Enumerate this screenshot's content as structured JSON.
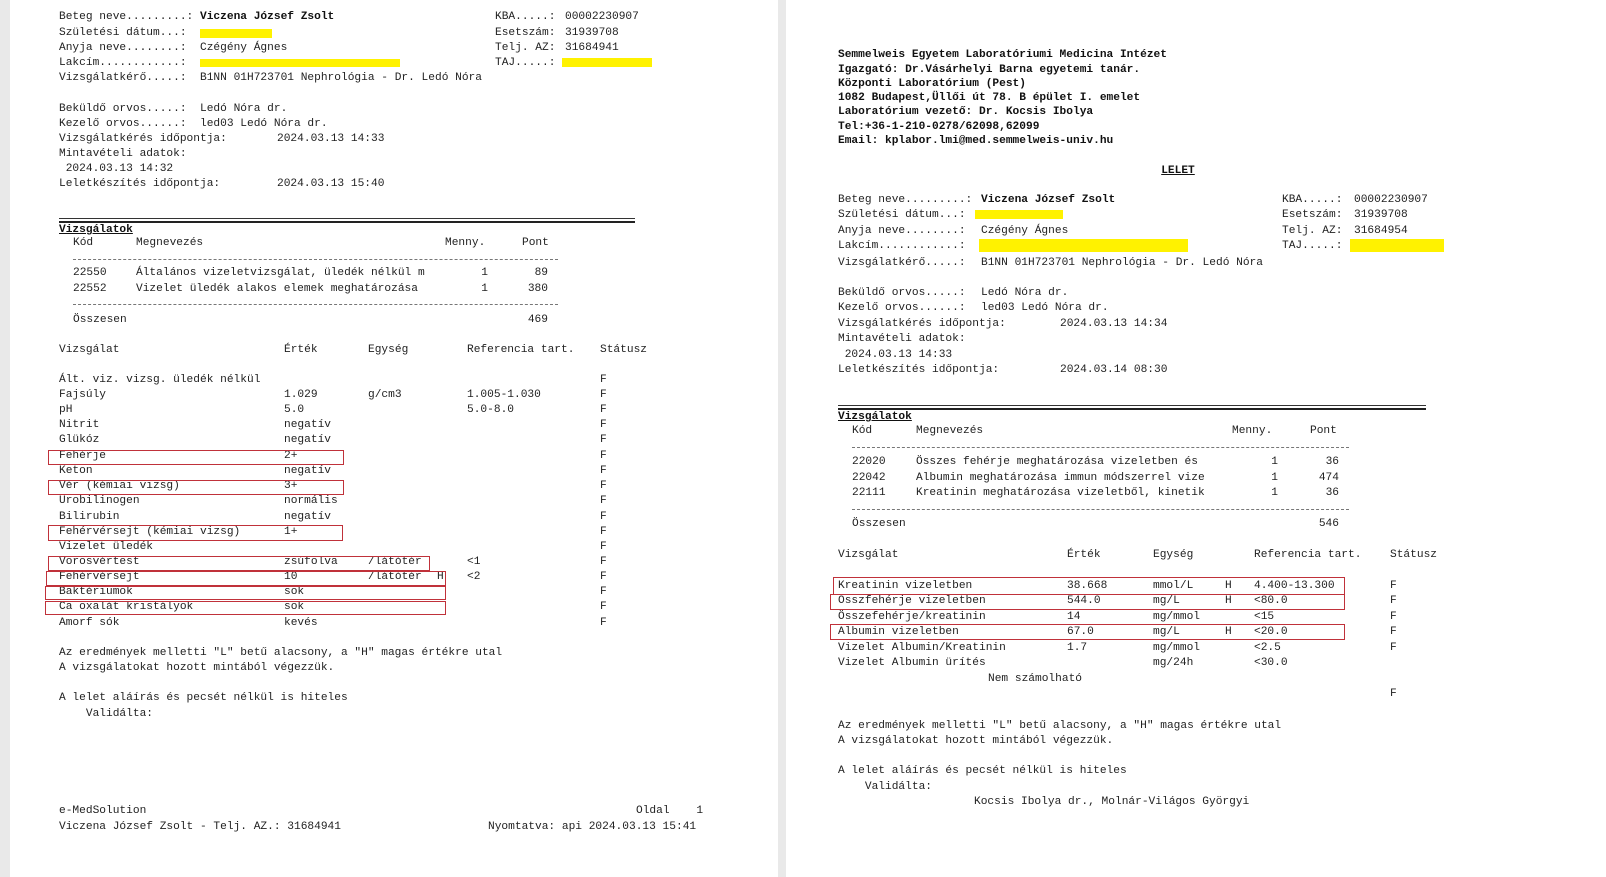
{
  "left_report": {
    "patient": [
      {
        "label": "Beteg neve.........:",
        "value": "Viczena József Zsolt",
        "bold": true
      },
      {
        "label": "Születési dátum...:",
        "value": "",
        "redacted": true
      },
      {
        "label": "Anyja neve........:",
        "value": "Czégény Ágnes"
      },
      {
        "label": "Lakcím............:",
        "value": "",
        "redacted": true
      },
      {
        "label": "Vizsgálatkérő.....:",
        "value": "B1NN 01H723701 Nephrológia - Dr. Ledó Nóra"
      }
    ],
    "ids": [
      {
        "label": "KBA.....:",
        "value": "00002230907"
      },
      {
        "label": "Esetszám:",
        "value": "31939708"
      },
      {
        "label": "Telj. AZ:",
        "value": "31684941"
      },
      {
        "label": "TAJ.....:",
        "value": "",
        "redacted": true
      }
    ],
    "doctors": [
      {
        "label": "Beküldő orvos.....:",
        "value": "Ledó Nóra dr."
      },
      {
        "label": "Kezelő orvos......:",
        "value": "led03 Ledó Nóra dr."
      },
      {
        "label": "Vizsgálatkérés időpontja:",
        "value": "2024.03.13 14:33"
      },
      {
        "label": "Mintavételi adatok:",
        "value": ""
      },
      {
        "label": " 2024.03.13 14:32",
        "value": ""
      },
      {
        "label": "Leletkészítés időpontja:",
        "value": "2024.03.13 15:40"
      }
    ],
    "tests_title": "Vizsgálatok",
    "tests_header": {
      "code": "Kód",
      "name": "Megnevezés",
      "qty": "Menny.",
      "points": "Pont"
    },
    "tests": [
      {
        "code": "22550",
        "name": "Általános vizeletvizsgálat, üledék nélkül m",
        "qty": "1",
        "points": "89"
      },
      {
        "code": "22552",
        "name": "Vizelet üledék alakos elemek meghatározása",
        "qty": "1",
        "points": "380"
      }
    ],
    "total": {
      "label": "Összesen",
      "points": "469"
    },
    "results_header": {
      "test": "Vizsgálat",
      "value": "Érték",
      "unit": "Egység",
      "ref": "Referencia tart.",
      "status": "Státusz"
    },
    "results": [
      {
        "test": "Ált. viz. vizsg. üledék nélkül",
        "value": "",
        "unit": "",
        "flag": "",
        "ref": "",
        "status": "F"
      },
      {
        "test": "Fajsúly",
        "value": "1.029",
        "unit": "g/cm3",
        "flag": "",
        "ref": "1.005-1.030",
        "status": "F"
      },
      {
        "test": "pH",
        "value": "5.0",
        "unit": "",
        "flag": "",
        "ref": "5.0-8.0",
        "status": "F"
      },
      {
        "test": "Nitrit",
        "value": "negatív",
        "unit": "",
        "flag": "",
        "ref": "",
        "status": "F"
      },
      {
        "test": "Glükóz",
        "value": "negatív",
        "unit": "",
        "flag": "",
        "ref": "",
        "status": "F"
      },
      {
        "test": "Fehérje",
        "value": "2+",
        "unit": "",
        "flag": "",
        "ref": "",
        "status": "F",
        "highlight": true
      },
      {
        "test": "Keton",
        "value": "negatív",
        "unit": "",
        "flag": "",
        "ref": "",
        "status": "F"
      },
      {
        "test": "Vér (kémiai vizsg)",
        "value": "3+",
        "unit": "",
        "flag": "",
        "ref": "",
        "status": "F",
        "highlight": true
      },
      {
        "test": "Urobilinogen",
        "value": "normális",
        "unit": "",
        "flag": "",
        "ref": "",
        "status": "F"
      },
      {
        "test": "Bilirubin",
        "value": "negatív",
        "unit": "",
        "flag": "",
        "ref": "",
        "status": "F"
      },
      {
        "test": "Fehérvérsejt (kémiai vizsg)",
        "value": "1+",
        "unit": "",
        "flag": "",
        "ref": "",
        "status": "F",
        "highlight": true
      },
      {
        "test": "Vizelet üledék",
        "value": "",
        "unit": "",
        "flag": "",
        "ref": "",
        "status": "F"
      },
      {
        "test": "Vörösvértest",
        "value": "zsúfolva",
        "unit": "/látótér",
        "flag": "",
        "ref": "<1",
        "status": "F",
        "highlight": true
      },
      {
        "test": "Fehérvérsejt",
        "value": "10",
        "unit": "/látótér",
        "flag": "H",
        "ref": "<2",
        "status": "F",
        "highlight": true
      },
      {
        "test": "Baktériumok",
        "value": "sok",
        "unit": "",
        "flag": "",
        "ref": "",
        "status": "F",
        "highlight": true
      },
      {
        "test": "Ca oxalát kristályok",
        "value": "sok",
        "unit": "",
        "flag": "",
        "ref": "",
        "status": "F",
        "highlight": true
      },
      {
        "test": "Amorf sók",
        "value": "kevés",
        "unit": "",
        "flag": "",
        "ref": "",
        "status": "F"
      }
    ],
    "notes": [
      "Az eredmények melletti \"L\" betű alacsony, a \"H\" magas értékre utal",
      "A vizsgálatokat hozott mintából végezzük.",
      "A lelet aláírás és pecsét nélkül is hiteles",
      "    Validálta:"
    ],
    "footer": {
      "software": "e-MedSolution",
      "page": "Oldal    1",
      "patient_line": "Viczena József Zsolt - Telj. AZ.: 31684941",
      "printed": "Nyomtatva: api 2024.03.13 15:41"
    }
  },
  "right_report": {
    "institution": [
      "Semmelweis Egyetem Laboratóriumi Medicina Intézet",
      "Igazgató: Dr.Vásárhelyi Barna egyetemi tanár.",
      "Központi Laboratórium (Pest)",
      "1082 Budapest,Üllői út 78. B épület I. emelet",
      "Laboratórium vezető: Dr. Kocsis Ibolya",
      "Tel:+36-1-210-0278/62098,62099",
      "Email: kplabor.lmi@med.semmelweis-univ.hu"
    ],
    "title": "LELET",
    "patient": [
      {
        "label": "Beteg neve.........:",
        "value": "Viczena József Zsolt",
        "bold": true
      },
      {
        "label": "Születési dátum...:",
        "value": "",
        "redacted": true
      },
      {
        "label": "Anyja neve........:",
        "value": "Czégény Ágnes"
      },
      {
        "label": "Lakcím............:",
        "value": "",
        "redacted": true
      },
      {
        "label": "Vizsgálatkérő.....:",
        "value": "B1NN 01H723701 Nephrológia - Dr. Ledó Nóra"
      }
    ],
    "ids": [
      {
        "label": "KBA.....:",
        "value": "00002230907"
      },
      {
        "label": "Esetszám:",
        "value": "31939708"
      },
      {
        "label": "Telj. AZ:",
        "value": "31684954"
      },
      {
        "label": "TAJ.....:",
        "value": "",
        "redacted": true
      }
    ],
    "doctors": [
      {
        "label": "Beküldő orvos.....:",
        "value": "Ledó Nóra dr."
      },
      {
        "label": "Kezelő orvos......:",
        "value": "led03 Ledó Nóra dr."
      },
      {
        "label": "Vizsgálatkérés időpontja:",
        "value": "2024.03.13 14:34"
      },
      {
        "label": "Mintavételi adatok:",
        "value": ""
      },
      {
        "label": " 2024.03.13 14:33",
        "value": ""
      },
      {
        "label": "Leletkészítés időpontja:",
        "value": "2024.03.14 08:30"
      }
    ],
    "tests_title": "Vizsgálatok",
    "tests_header": {
      "code": "Kód",
      "name": "Megnevezés",
      "qty": "Menny.",
      "points": "Pont"
    },
    "tests": [
      {
        "code": "22020",
        "name": "Összes fehérje meghatározása vizeletben és",
        "qty": "1",
        "points": "36"
      },
      {
        "code": "22042",
        "name": "Albumin meghatározása immun módszerrel vize",
        "qty": "1",
        "points": "474"
      },
      {
        "code": "22111",
        "name": "Kreatinin meghatározása vizeletből, kinetik",
        "qty": "1",
        "points": "36"
      }
    ],
    "total": {
      "label": "Összesen",
      "points": "546"
    },
    "results_header": {
      "test": "Vizsgálat",
      "value": "Érték",
      "unit": "Egység",
      "ref": "Referencia tart.",
      "status": "Státusz"
    },
    "results": [
      {
        "test": "Kreatinin vizeletben",
        "value": "38.668",
        "unit": "mmol/L",
        "flag": "H",
        "ref": "4.400-13.300",
        "status": "F",
        "highlight": true
      },
      {
        "test": "Összfehérje vizeletben",
        "value": "544.0",
        "unit": "mg/L",
        "flag": "H",
        "ref": "<80.0",
        "status": "F",
        "highlight": true
      },
      {
        "test": "Összefehérje/kreatinin",
        "value": "14",
        "unit": "mg/mmol",
        "flag": "",
        "ref": "<15",
        "status": "F"
      },
      {
        "test": "Albumin vizeletben",
        "value": "67.0",
        "unit": "mg/L",
        "flag": "H",
        "ref": "<20.0",
        "status": "F",
        "highlight": true
      },
      {
        "test": "Vizelet Albumin/Kreatinin",
        "value": "1.7",
        "unit": "mg/mmol",
        "flag": "",
        "ref": "<2.5",
        "status": "F"
      },
      {
        "test": "Vizelet Albumin ürítés",
        "value": "",
        "unit": "mg/24h",
        "flag": "",
        "ref": "<30.0",
        "status": ""
      }
    ],
    "result_note": "Nem számolható",
    "trailing_status": "F",
    "notes": [
      "Az eredmények melletti \"L\" betű alacsony, a \"H\" magas értékre utal",
      "A vizsgálatokat hozott mintából végezzük.",
      "A lelet aláírás és pecsét nélkül is hiteles",
      "    Validálta:"
    ],
    "validators": "Kocsis Ibolya dr., Molnár-Világos Györgyi"
  },
  "colors": {
    "highlight_box": "#c0313a",
    "redaction": "#fff200"
  }
}
